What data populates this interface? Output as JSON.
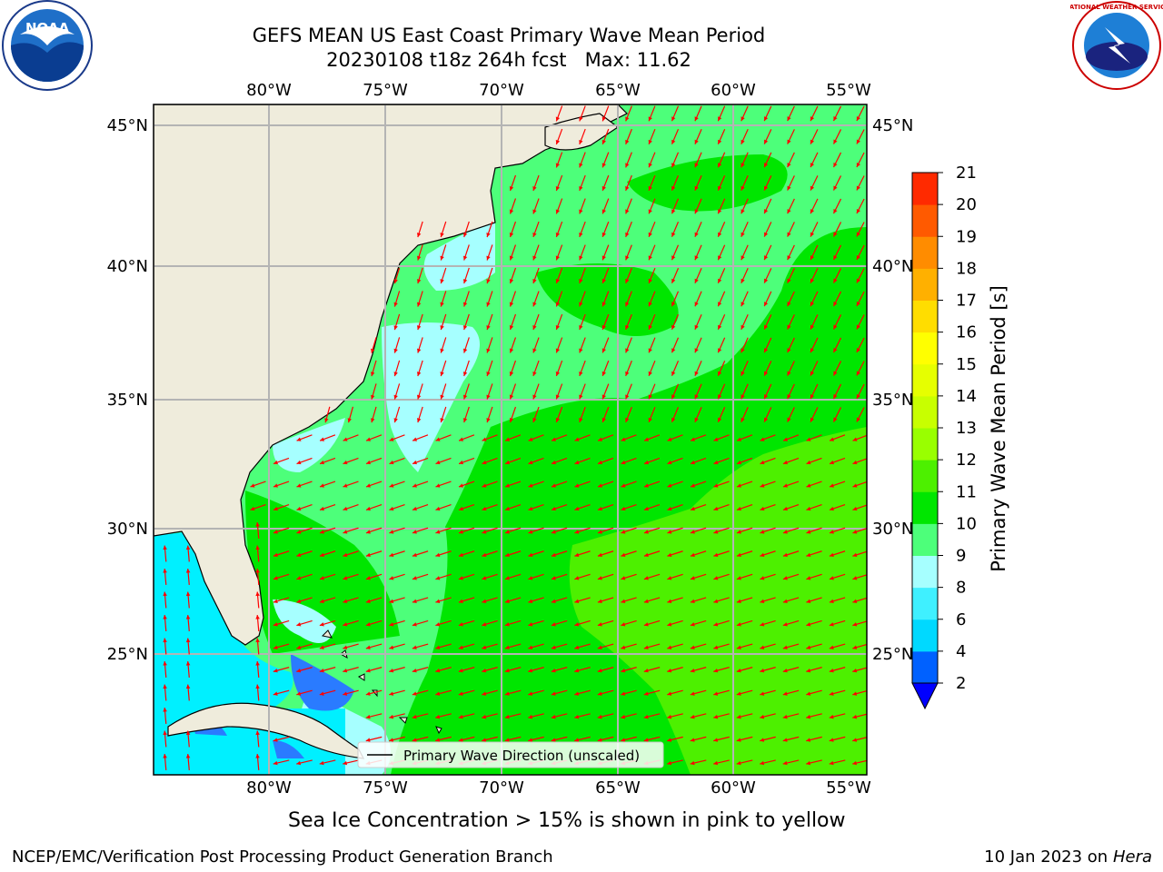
{
  "header": {
    "title_line1": "GEFS MEAN US East Coast Primary Wave Mean Period",
    "title_line2": "20230108 t18z 264h fcst   Max: 11.62"
  },
  "logos": {
    "left": {
      "name": "NOAA",
      "text": "NOAA",
      "ring_text": "NATIONAL OCEANIC AND ATMOSPHERIC ADMINISTRATION · U.S. DEPARTMENT OF COMMERCE"
    },
    "right": {
      "name": "National Weather Service",
      "ring_text": "NATIONAL WEATHER SERVICE"
    }
  },
  "map": {
    "lon_labels": [
      "80°W",
      "75°W",
      "70°W",
      "65°W",
      "60°W",
      "55°W"
    ],
    "lat_labels": [
      "45°N",
      "40°N",
      "35°N",
      "30°N",
      "25°N"
    ],
    "legend_label": "Primary Wave Direction (unscaled)",
    "arrow_color": "#ff0000",
    "land_color": "#efecdc"
  },
  "colorbar": {
    "label": "Primary Wave Mean Period [s]",
    "ticks": [
      "2",
      "4",
      "6",
      "8",
      "9",
      "10",
      "11",
      "12",
      "13",
      "14",
      "15",
      "16",
      "17",
      "18",
      "19",
      "20",
      "21"
    ],
    "colors": [
      "#0061ff",
      "#00d9ff",
      "#3ff0ff",
      "#a6ffff",
      "#4dff7a",
      "#00e600",
      "#4df000",
      "#99ff00",
      "#c8ff00",
      "#e6ff00",
      "#ffff00",
      "#ffdd00",
      "#ffb000",
      "#ff8c00",
      "#ff5a00",
      "#ff2a00",
      "#ff0000"
    ],
    "extend_color": "#0000ff"
  },
  "caption": "Sea Ice Concentration > 15% is shown in pink to yellow",
  "footer": {
    "left": "NCEP/EMC/Verification Post Processing Product Generation Branch",
    "right_date": "10 Jan 2023 on ",
    "right_host": "Hera"
  }
}
